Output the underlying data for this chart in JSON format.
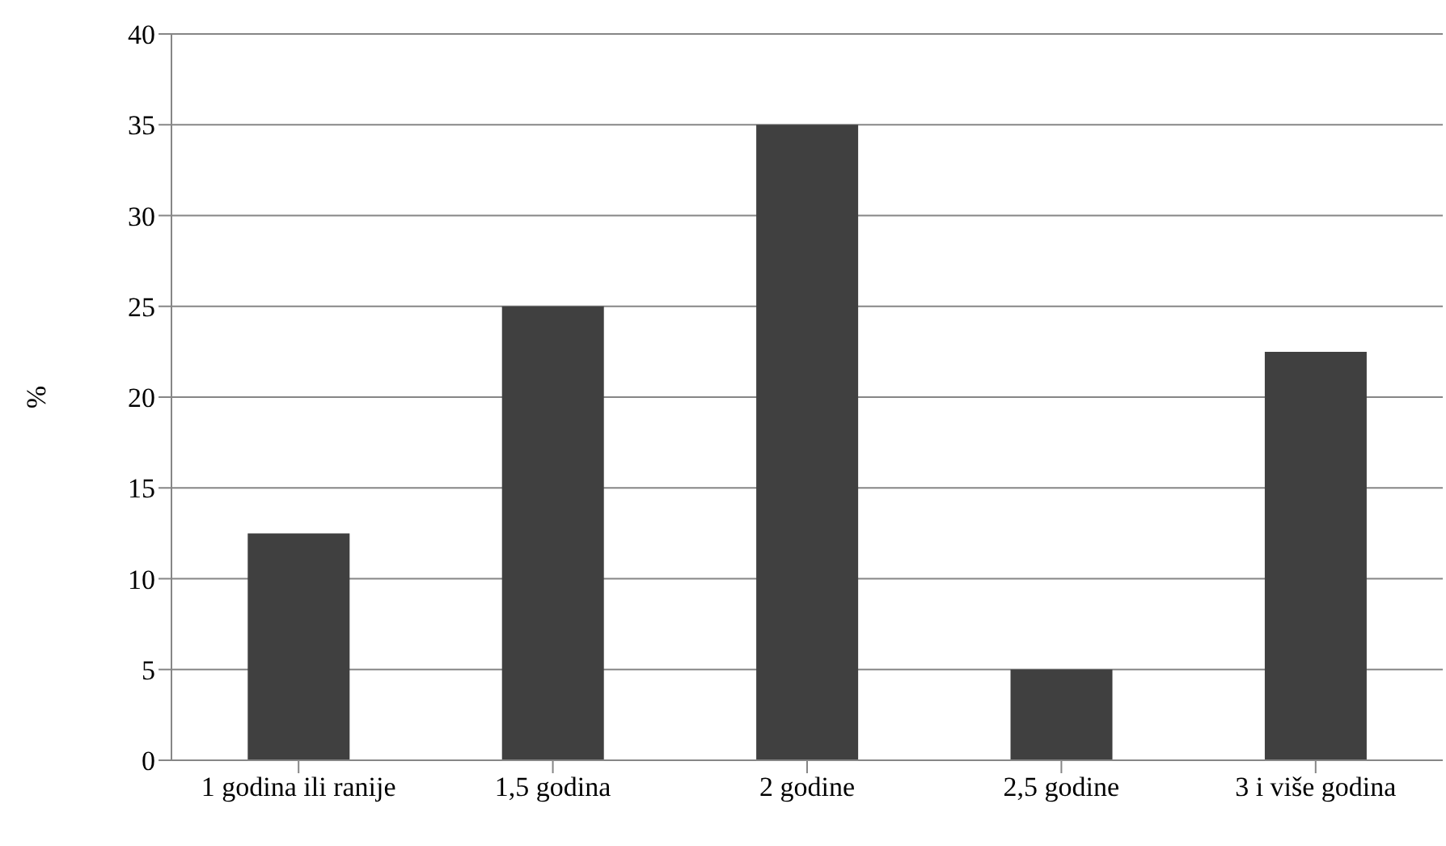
{
  "chart_data": {
    "type": "bar",
    "ylabel": "%",
    "categories": [
      "1 godina ili ranije",
      "1,5 godina",
      "2 godine",
      "2,5 godine",
      "3 i više godina"
    ],
    "values": [
      12.5,
      25,
      35,
      5,
      22.5
    ],
    "color": "#404040",
    "ylim": [
      0,
      40
    ],
    "yticks": [
      0,
      5,
      10,
      15,
      20,
      25,
      30,
      35,
      40
    ],
    "grid": "y",
    "legend": false
  }
}
